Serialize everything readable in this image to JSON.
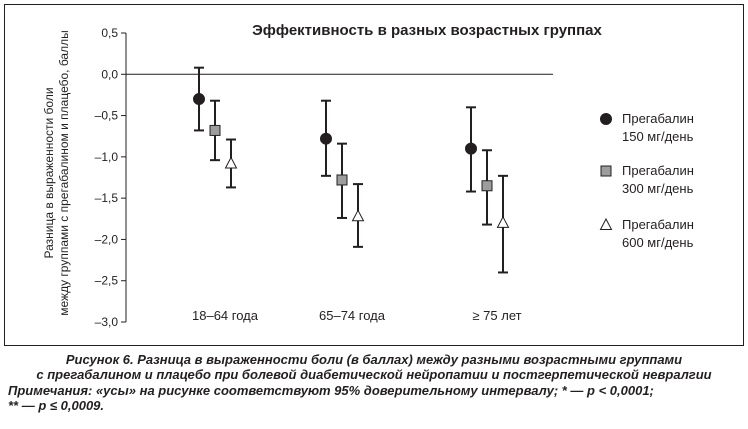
{
  "chart_data": {
    "type": "errorbar",
    "title": "Эффективность в разных возрастных группах",
    "ylabel_line1": "Разница в выраженности боли",
    "ylabel_line2": "между группами с прегабалином и плацебо, баллы",
    "ylim": [
      -3.0,
      0.5
    ],
    "yticks": [
      0.5,
      0.0,
      -0.5,
      -1.0,
      -1.5,
      -2.0,
      -2.5,
      -3.0
    ],
    "ytick_labels": [
      "0,5",
      "0,0",
      "–0,5",
      "–1,0",
      "–1,5",
      "–2,0",
      "–2,5",
      "–3,0"
    ],
    "categories": [
      "18–64 года",
      "65–74 года",
      "≥ 75 лет"
    ],
    "series": [
      {
        "name_line1": "Прегабалин",
        "name_line2": "150 мг/день",
        "marker": "circle",
        "color": "#231f20",
        "values": [
          -0.3,
          -0.78,
          -0.9
        ],
        "lower": [
          -0.68,
          -1.23,
          -1.42
        ],
        "upper": [
          0.08,
          -0.32,
          -0.4
        ]
      },
      {
        "name_line1": "Прегабалин",
        "name_line2": "300 мг/день",
        "marker": "square",
        "color": "#9d9d9d",
        "values": [
          -0.68,
          -1.28,
          -1.35
        ],
        "lower": [
          -1.04,
          -1.74,
          -1.82
        ],
        "upper": [
          -0.32,
          -0.84,
          -0.92
        ]
      },
      {
        "name_line1": "Прегабалин",
        "name_line2": "600 мг/день",
        "marker": "triangle",
        "color": "#ffffff",
        "values": [
          -1.08,
          -1.72,
          -1.8
        ],
        "lower": [
          -1.37,
          -2.09,
          -2.4
        ],
        "upper": [
          -0.79,
          -1.33,
          -1.23
        ]
      }
    ],
    "reference_line": 0.0,
    "legend_position": "right"
  },
  "caption": {
    "title_line1": "Рисунок 6. Разница в выраженности боли (в баллах) между разными возрастными группами",
    "title_line2": "с прегабалином и плацебо при болевой диабетической нейропатии и постгерпетической невралгии",
    "note_line1": "Примечания: «усы» на рисунке соответствуют 95% доверительному интервалу; * — p < 0,0001;",
    "note_line2": "** — p ≤ 0,0009."
  }
}
